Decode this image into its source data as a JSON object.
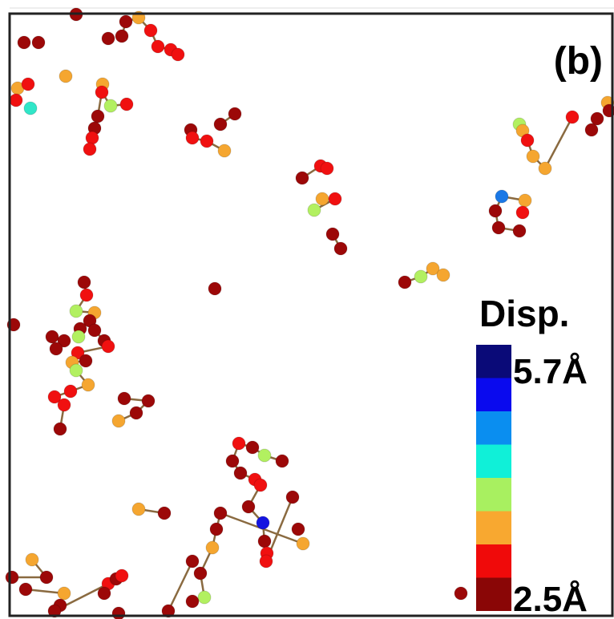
{
  "panel_label": "(b)",
  "colorbar": {
    "title": "Disp.",
    "max_label": "5.7Å",
    "min_label": "2.5Å"
  }
}
